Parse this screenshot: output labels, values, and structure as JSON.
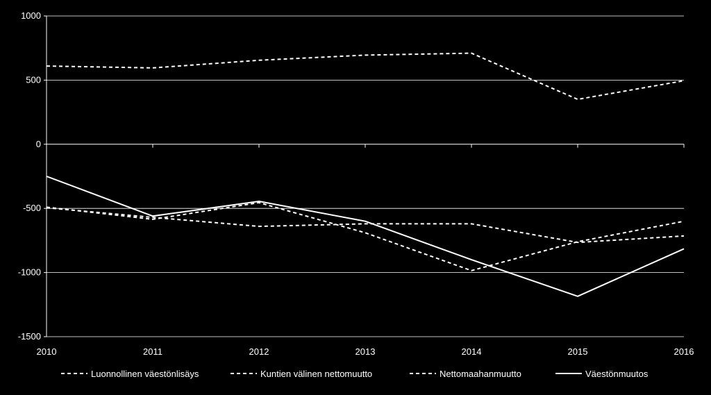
{
  "chart_data": {
    "type": "line",
    "x": [
      2010,
      2011,
      2012,
      2013,
      2014,
      2015,
      2016
    ],
    "ylim": [
      -1500,
      1000
    ],
    "y_ticks": [
      "1000",
      "500",
      "0",
      "-500",
      "-1000",
      "-1500"
    ],
    "x_ticks": [
      "2010",
      "2011",
      "2012",
      "2013",
      "2014",
      "2015",
      "2016"
    ],
    "grid": true,
    "legend_placement": "bottom",
    "background_color": "#000000",
    "foreground_color": "#ffffff",
    "series": [
      {
        "name": "Luonnollinen väestönlisäys",
        "style": "dashed",
        "values": [
          -490,
          -585,
          -455,
          -690,
          -985,
          -760,
          -600
        ]
      },
      {
        "name": "Kuntien välinen nettomuutto",
        "style": "dashed",
        "values": [
          -495,
          -570,
          -640,
          -620,
          -620,
          -765,
          -715
        ]
      },
      {
        "name": "Nettomaahanmuutto",
        "style": "dashed",
        "values": [
          610,
          595,
          655,
          695,
          710,
          350,
          495
        ]
      },
      {
        "name": "Väestönmuutos",
        "style": "solid",
        "values": [
          -250,
          -560,
          -445,
          -600,
          -900,
          -1185,
          -815
        ]
      }
    ]
  }
}
